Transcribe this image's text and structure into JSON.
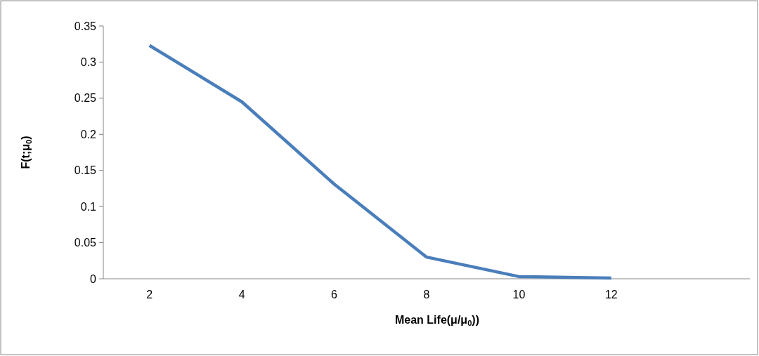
{
  "chart_data": {
    "type": "line",
    "xlabel": "Mean Life(μ/μ$_{0}$))",
    "ylabel": "F(t;μ$_{0}$)",
    "categories": [
      "2",
      "4",
      "6",
      "8",
      "10",
      "12",
      null
    ],
    "series": [
      {
        "color": "#4a7ebb",
        "values": [
          0.323,
          0.245,
          0.131,
          0.03,
          0.003,
          0.001,
          null
        ]
      }
    ],
    "ylim": [
      0,
      0.35
    ],
    "yticks": [
      0,
      0.05,
      0.1,
      0.15,
      0.2,
      0.25,
      0.3,
      0.35
    ],
    "grid": false,
    "marker": "none",
    "line_style": "solid"
  }
}
